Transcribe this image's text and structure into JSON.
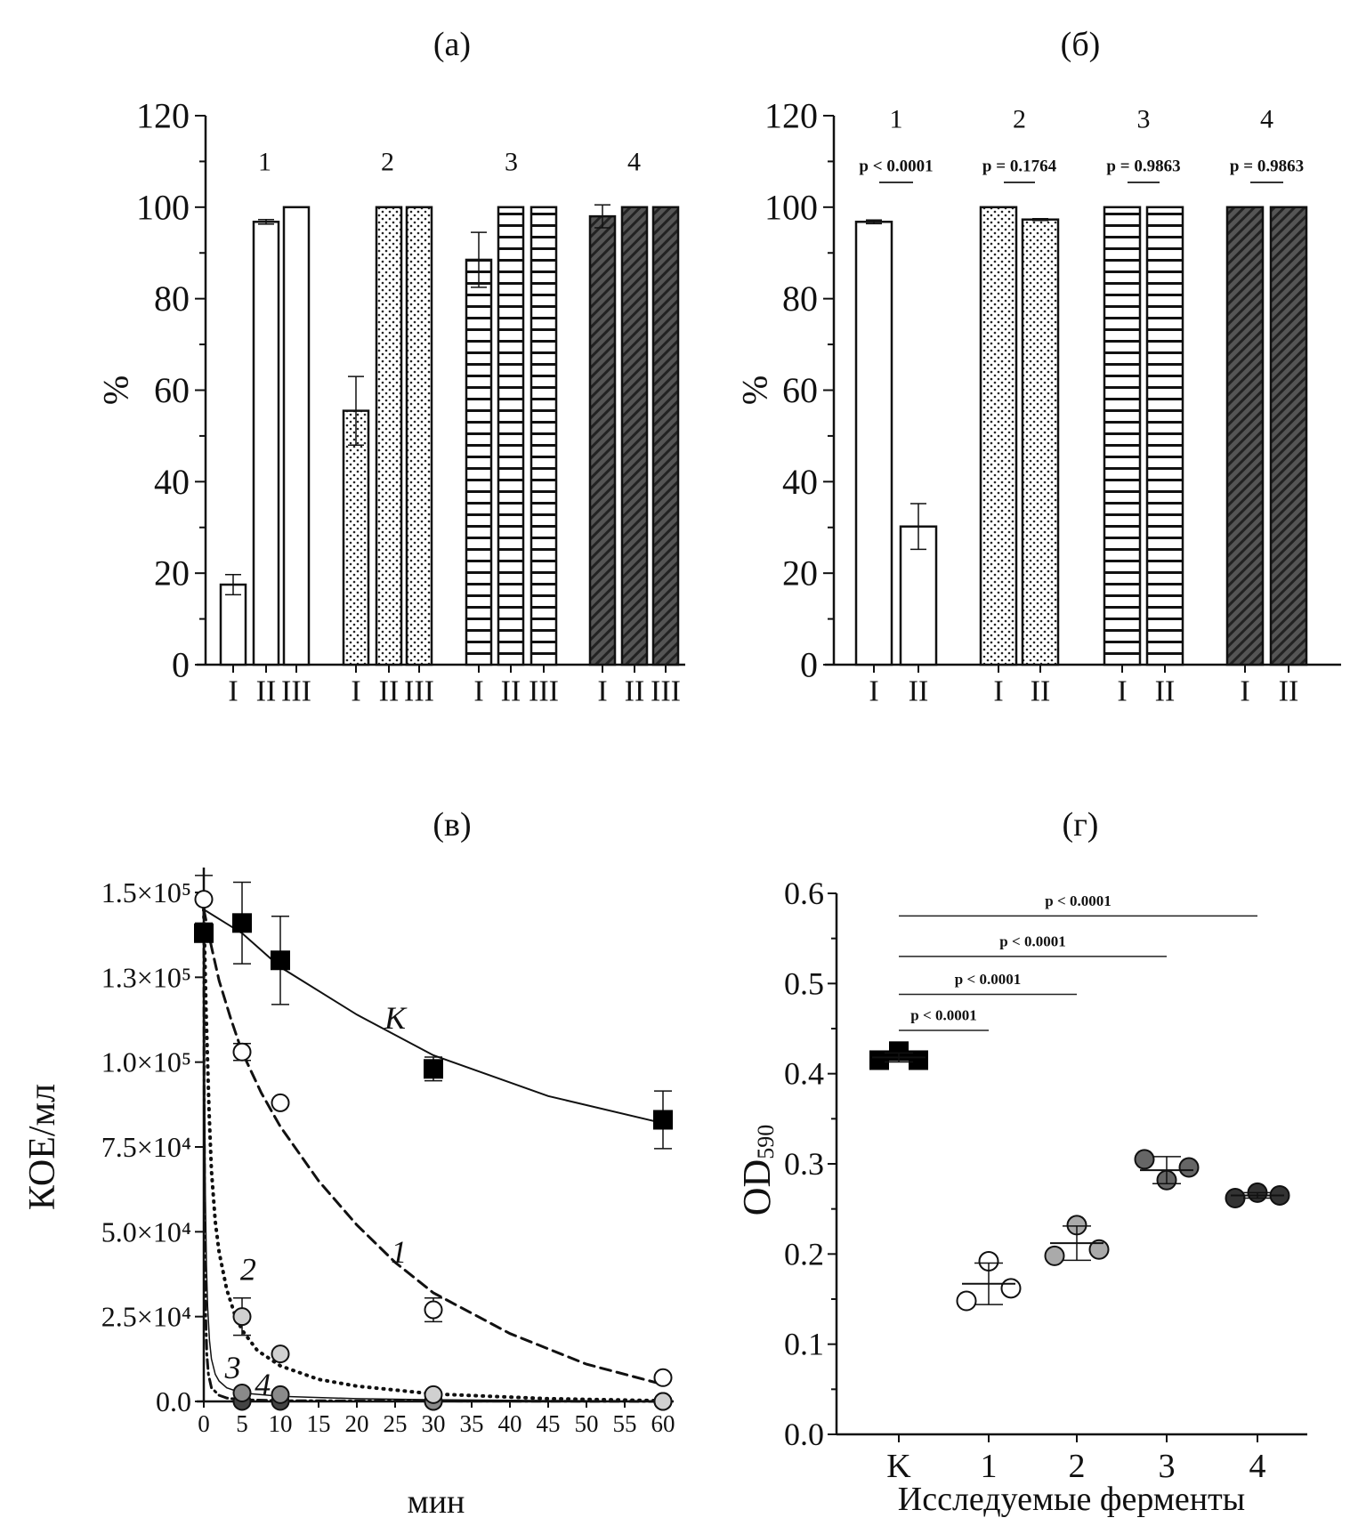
{
  "chart_data": [
    {
      "panel": "(a)",
      "type": "bar",
      "ylabel": "%",
      "ylim": [
        0,
        120
      ],
      "yticks": [
        0,
        20,
        40,
        60,
        80,
        100,
        120
      ],
      "group_labels": [
        "1",
        "2",
        "3",
        "4"
      ],
      "bar_labels": [
        "I",
        "II",
        "III"
      ],
      "patterns": [
        "white",
        "dots",
        "horizontal-lines",
        "diagonal-hatch-dark"
      ],
      "groups": [
        {
          "values": [
            17.5,
            96.8,
            100
          ],
          "errors": [
            2.2,
            0.5,
            0
          ]
        },
        {
          "values": [
            55.5,
            100,
            100
          ],
          "errors": [
            7.5,
            0,
            0
          ]
        },
        {
          "values": [
            88.5,
            100,
            100
          ],
          "errors": [
            6,
            0,
            0
          ]
        },
        {
          "values": [
            98,
            100,
            100
          ],
          "errors": [
            2.5,
            0,
            0
          ]
        }
      ]
    },
    {
      "panel": "(б)",
      "type": "bar",
      "ylabel": "%",
      "ylim": [
        0,
        120
      ],
      "yticks": [
        0,
        20,
        40,
        60,
        80,
        100,
        120
      ],
      "group_labels": [
        "1",
        "2",
        "3",
        "4"
      ],
      "bar_labels": [
        "I",
        "II"
      ],
      "patterns": [
        "white",
        "dots",
        "horizontal-lines",
        "diagonal-hatch-dark"
      ],
      "p_values": [
        "p < 0.0001",
        "p = 0.1764",
        "p = 0.9863",
        "p = 0.9863"
      ],
      "groups": [
        {
          "values": [
            96.8,
            30.2
          ],
          "errors": [
            0.4,
            5
          ]
        },
        {
          "values": [
            100,
            97.3
          ],
          "errors": [
            0,
            0.2
          ]
        },
        {
          "values": [
            100,
            100
          ],
          "errors": [
            0,
            0
          ]
        },
        {
          "values": [
            100,
            100
          ],
          "errors": [
            0,
            0
          ]
        }
      ]
    },
    {
      "panel": "(в)",
      "type": "line",
      "xlabel": "мин",
      "ylabel": "КОЕ/мл",
      "xlim": [
        0,
        60
      ],
      "ylim": [
        0,
        150000
      ],
      "xticks": [
        0,
        5,
        10,
        15,
        20,
        25,
        30,
        35,
        40,
        45,
        50,
        55,
        60
      ],
      "yticks": [
        0,
        25000,
        50000,
        75000,
        100000,
        125000,
        150000
      ],
      "ytick_labels": [
        "0.0",
        "2.5×10⁴",
        "5.0×10⁴",
        "7.5×10⁴",
        "1.0×10⁵",
        "1.3×10⁵",
        "1.5×10⁵"
      ],
      "series": [
        {
          "name": "K",
          "marker": "square",
          "color": "#000000",
          "line": "solid",
          "x": [
            0,
            5,
            10,
            30,
            60
          ],
          "y": [
            138000,
            141000,
            130000,
            98000,
            83000
          ],
          "err": [
            0,
            12000,
            13000,
            3500,
            8500
          ],
          "fit_x": [
            0,
            5,
            10,
            20,
            30,
            45,
            60
          ],
          "fit_y": [
            145000,
            138000,
            128000,
            114000,
            102000,
            90000,
            82000
          ],
          "label_at": [
            25,
            113000
          ]
        },
        {
          "name": "1",
          "marker": "circle",
          "color": "#ffffff",
          "line": "dashed",
          "x": [
            0,
            5,
            10,
            30,
            60
          ],
          "y": [
            148000,
            103000,
            88000,
            27000,
            7000
          ],
          "err": [
            7000,
            2500,
            0,
            3500,
            0
          ],
          "fit_x": [
            0,
            1,
            2,
            3.5,
            5,
            7.5,
            10,
            15,
            20,
            25,
            30,
            40,
            50,
            60
          ],
          "fit_y": [
            145000,
            134000,
            124000,
            113000,
            103000,
            91000,
            81000,
            65000,
            52000,
            41000,
            32000,
            20000,
            11000,
            5000
          ],
          "label_at": [
            25.5,
            44000
          ]
        },
        {
          "name": "2",
          "marker": "circle",
          "color": "#d0d0d0",
          "line": "dotted",
          "x": [
            5,
            10,
            30,
            60
          ],
          "y": [
            25000,
            14000,
            2000,
            0
          ],
          "err": [
            5500,
            0,
            0,
            0
          ],
          "fit_x": [
            0,
            0.3,
            0.7,
            1,
            1.5,
            2,
            3,
            4,
            5,
            7,
            10,
            15,
            20,
            30,
            45,
            60
          ],
          "fit_y": [
            145000,
            115000,
            85000,
            68000,
            53000,
            44000,
            33000,
            26000,
            21000,
            15000,
            10500,
            6500,
            4500,
            2200,
            800,
            200
          ],
          "label_at": [
            5.8,
            39000
          ]
        },
        {
          "name": "3",
          "marker": "circle",
          "color": "#8a8a8a",
          "line": "solid-thin",
          "x": [
            5,
            10,
            30,
            60
          ],
          "y": [
            2500,
            2000,
            0,
            0
          ],
          "err": [
            0,
            0,
            0,
            0
          ],
          "fit_x": [
            0,
            0.1,
            0.2,
            0.35,
            0.5,
            0.75,
            1,
            1.5,
            2,
            3,
            5,
            10,
            20,
            30,
            60
          ],
          "fit_y": [
            145000,
            95000,
            62000,
            40000,
            28000,
            18000,
            12500,
            8000,
            6000,
            4000,
            2500,
            1500,
            800,
            500,
            0
          ],
          "label_at": [
            3.8,
            10000
          ]
        },
        {
          "name": "4",
          "marker": "circle",
          "color": "#444444",
          "line": "dash-dot",
          "x": [
            5,
            10,
            30,
            60
          ],
          "y": [
            0,
            0,
            0,
            0
          ],
          "err": [
            0,
            0,
            0,
            0
          ],
          "fit_x": [
            0,
            0.05,
            0.12,
            0.25,
            0.4,
            0.6,
            1,
            2,
            3,
            5,
            10,
            60
          ],
          "fit_y": [
            145000,
            90000,
            50000,
            25000,
            14000,
            8000,
            4000,
            1800,
            1000,
            500,
            200,
            0
          ],
          "label_at": [
            7.7,
            5000
          ]
        }
      ]
    },
    {
      "panel": "(г)",
      "type": "scatter",
      "xlabel": "Исследуемые ферменты",
      "ylabel_main": "OD",
      "ylabel_sub": "590",
      "ylim": [
        0,
        0.6
      ],
      "yticks": [
        0.0,
        0.1,
        0.2,
        0.3,
        0.4,
        0.5,
        0.6
      ],
      "ytick_labels": [
        "0.0",
        "0.1",
        "0.2",
        "0.3",
        "0.4",
        "0.5",
        "0.6"
      ],
      "categories": [
        "K",
        "1",
        "2",
        "3",
        "4"
      ],
      "colors": [
        "#000000",
        "#ffffff",
        "#aaaaaa",
        "#666666",
        "#333333"
      ],
      "markers": [
        "square",
        "circle",
        "circle",
        "circle",
        "circle"
      ],
      "points": [
        [
          0.415,
          0.425,
          0.415
        ],
        [
          0.148,
          0.192,
          0.162
        ],
        [
          0.198,
          0.232,
          0.205
        ],
        [
          0.305,
          0.282,
          0.296
        ],
        [
          0.262,
          0.268,
          0.265
        ]
      ],
      "means": [
        0.418,
        0.167,
        0.212,
        0.293,
        0.265
      ],
      "sd": [
        0.005,
        0.023,
        0.019,
        0.015,
        0.003
      ],
      "comparisons": [
        {
          "from": "K",
          "to": "1",
          "y": 0.448,
          "label": "p < 0.0001"
        },
        {
          "from": "K",
          "to": "2",
          "y": 0.488,
          "label": "p < 0.0001"
        },
        {
          "from": "K",
          "to": "3",
          "y": 0.53,
          "label": "p < 0.0001"
        },
        {
          "from": "K",
          "to": "4",
          "y": 0.575,
          "label": "p < 0.0001"
        }
      ]
    }
  ]
}
